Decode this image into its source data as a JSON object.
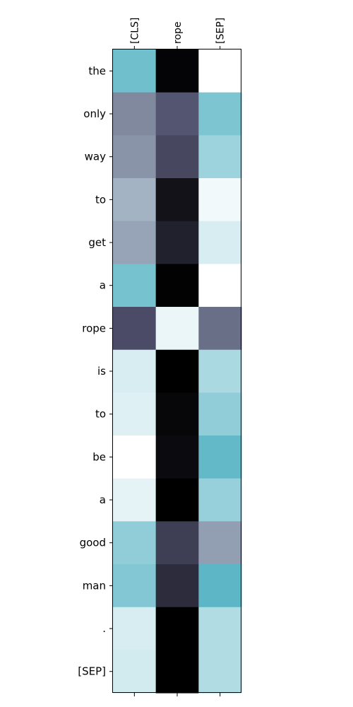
{
  "chart_data": {
    "type": "heatmap",
    "colormap": "bone",
    "x_tick_position": "top",
    "grid": false,
    "legend": "none",
    "x_labels": [
      "[CLS]",
      "rope",
      "[SEP]"
    ],
    "y_labels": [
      "the",
      "only",
      "way",
      "to",
      "get",
      "a",
      "rope",
      "is",
      "to",
      "be",
      "a",
      "good",
      "man",
      ".",
      "[SEP]"
    ],
    "values": [
      [
        0.78,
        0.02,
        1.0
      ],
      [
        0.58,
        0.38,
        0.8
      ],
      [
        0.62,
        0.32,
        0.85
      ],
      [
        0.74,
        0.08,
        0.98
      ],
      [
        0.68,
        0.15,
        0.94
      ],
      [
        0.79,
        0.01,
        1.0
      ],
      [
        0.34,
        0.97,
        0.48
      ],
      [
        0.94,
        0.0,
        0.87
      ],
      [
        0.95,
        0.03,
        0.83
      ],
      [
        1.0,
        0.05,
        0.76
      ],
      [
        0.96,
        0.0,
        0.84
      ],
      [
        0.83,
        0.28,
        0.66
      ],
      [
        0.81,
        0.2,
        0.75
      ],
      [
        0.94,
        0.0,
        0.88
      ],
      [
        0.93,
        0.0,
        0.88
      ]
    ]
  }
}
